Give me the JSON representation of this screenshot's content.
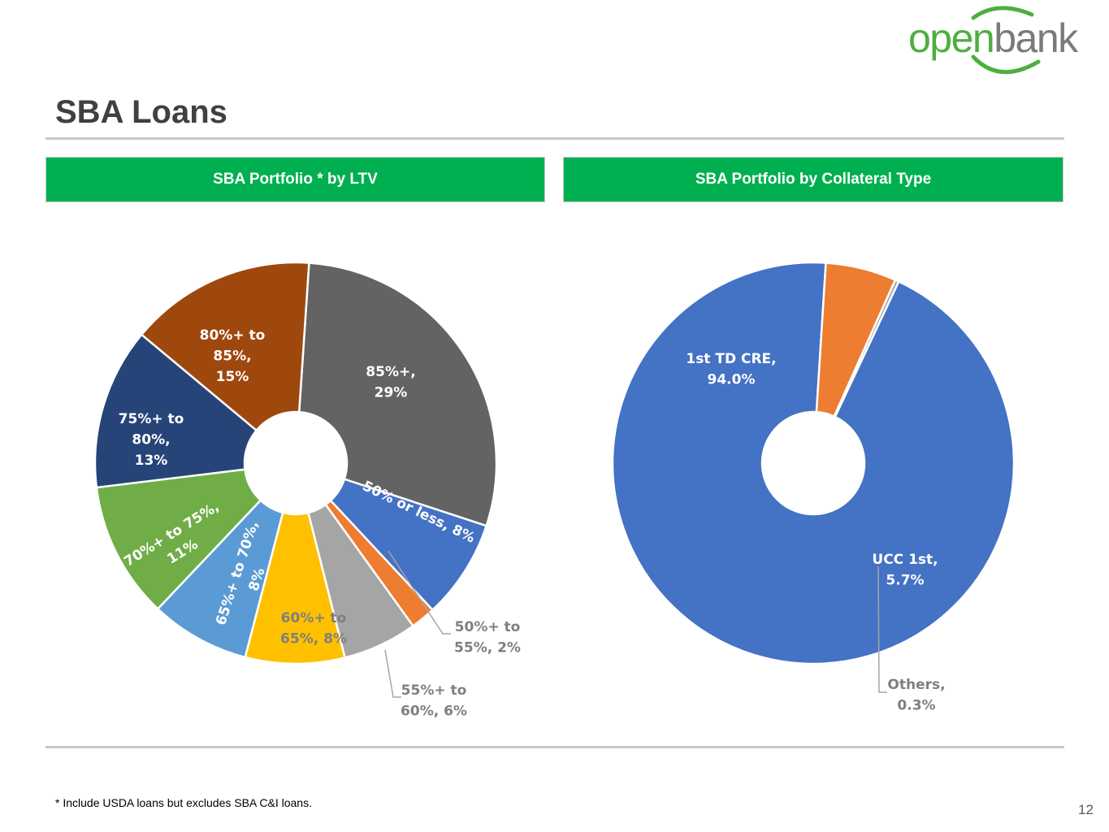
{
  "logo": {
    "open": "open",
    "bank": "bank"
  },
  "page": {
    "title": "SBA Loans",
    "footnote": "* Include USDA loans but excludes SBA C&I loans.",
    "page_number": "12"
  },
  "colors": {
    "green": "#00b050",
    "logo_green": "#4fae3f",
    "logo_gray": "#7a7a7a"
  },
  "chart_data": [
    {
      "type": "pie",
      "title": "SBA Portfolio * by LTV",
      "categories": [
        "85%+",
        "50% or less",
        "50%+ to 55%",
        "55%+ to 60%",
        "60%+ to 65%",
        "65%+ to 70%",
        "70%+ to 75%",
        "75%+ to 80%",
        "80%+ to 85%"
      ],
      "values": [
        29,
        8,
        2,
        6,
        8,
        8,
        11,
        13,
        15
      ],
      "colors": [
        "#636363",
        "#4472c4",
        "#ed7d31",
        "#a5a5a5",
        "#ffc000",
        "#5b9bd5",
        "#70ad47",
        "#264478",
        "#9e480e"
      ],
      "labels": [
        [
          "85%+,",
          "29%"
        ],
        [
          "50% or less, 8%"
        ],
        [
          "50%+ to",
          "55%, 2%"
        ],
        [
          "55%+ to",
          "60%, 6%"
        ],
        [
          "60%+ to",
          "65%, 8%"
        ],
        [
          "65%+ to 70%,",
          "8%"
        ],
        [
          "70%+ to 75%,",
          "11%"
        ],
        [
          "75%+ to",
          "80%,",
          "13%"
        ],
        [
          "80%+ to",
          "85%,",
          "15%"
        ]
      ]
    },
    {
      "type": "pie",
      "title": "SBA Portfolio by Collateral Type",
      "categories": [
        "1st TD CRE",
        "UCC 1st",
        "Others"
      ],
      "values": [
        94.0,
        5.7,
        0.3
      ],
      "colors": [
        "#4472c4",
        "#ed7d31",
        "#a5a5a5"
      ],
      "labels": [
        [
          "1st TD CRE,",
          "94.0%"
        ],
        [
          "UCC 1st,",
          "5.7%"
        ],
        [
          "Others,",
          "0.3%"
        ]
      ]
    }
  ]
}
